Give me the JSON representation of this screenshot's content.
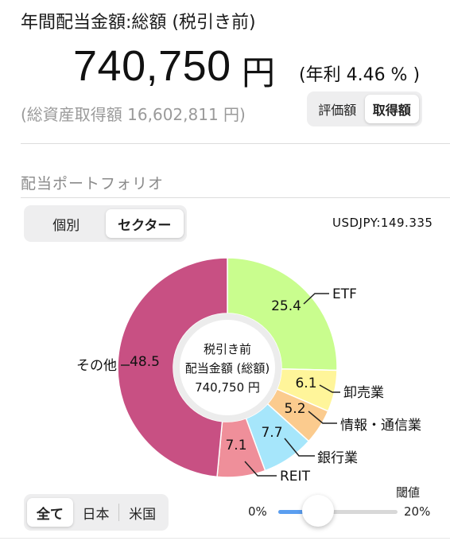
{
  "header": {
    "title": "年間配当金額:総額 (税引き前)",
    "total_value": "740,750",
    "total_unit": "円",
    "yield_text": "(年利 4.46 % )",
    "asset_total": "(総資産取得額 16,602,811 円)"
  },
  "basis_toggle": {
    "options": [
      "評価額",
      "取得額"
    ],
    "selected": "取得額"
  },
  "portfolio": {
    "section_title": "配当ポートフォリオ",
    "view_toggle": {
      "options": [
        "個別",
        "セクター"
      ],
      "selected": "セクター"
    },
    "fx_rate": "USDJPY:149.335"
  },
  "chart_data": {
    "type": "pie",
    "categories": [
      "ETF",
      "卸売業",
      "情報・通信業",
      "銀行業",
      "REIT",
      "その他"
    ],
    "values": [
      25.4,
      6.1,
      5.2,
      7.7,
      7.1,
      48.5
    ],
    "value_labels": [
      "25.4",
      "6.1",
      "5.2",
      "7.7",
      "7.1",
      "48.5"
    ],
    "colors": [
      "#c9fd8e",
      "#fff59a",
      "#fbcb8e",
      "#a6e6fb",
      "#ef8f9a",
      "#c85083"
    ],
    "center_lines": [
      "税引き前",
      "配当金額 (総額)",
      "740,750 円"
    ]
  },
  "region_toggle": {
    "options": [
      "全て",
      "日本",
      "米国"
    ],
    "selected": "全て"
  },
  "threshold": {
    "label": "閾値",
    "min_label": "0%",
    "max_label": "20%",
    "value_fraction": 0.33,
    "fill_color": "#5a9ef0"
  }
}
